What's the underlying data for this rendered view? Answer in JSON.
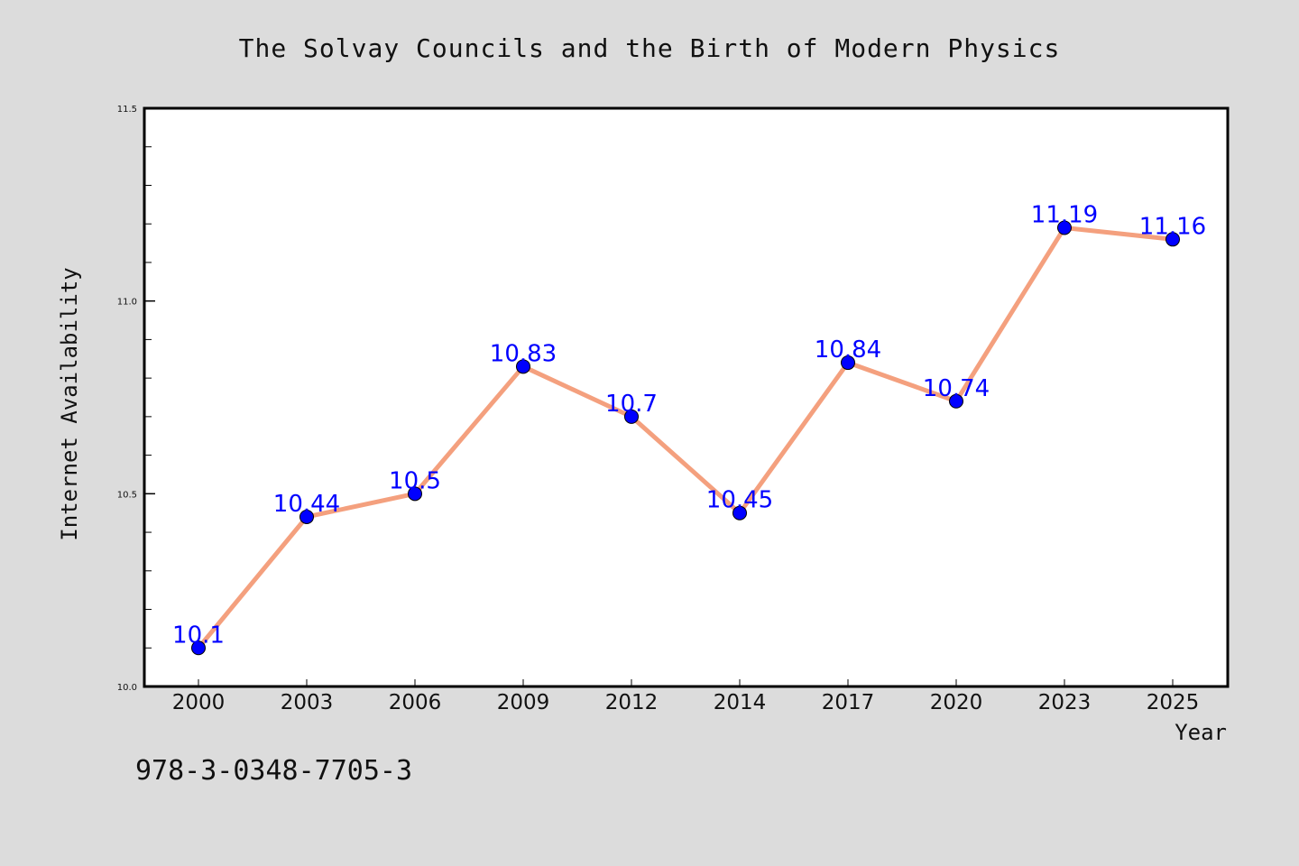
{
  "colors": {
    "background": "#dcdcdc",
    "plot_background": "#ffffff",
    "line": "#f4a07e",
    "marker": "#0000ff",
    "data_label": "#0000ff",
    "text": "#111111"
  },
  "footer": {
    "isbn": "978-3-0348-7705-3"
  },
  "chart_data": {
    "type": "line",
    "title": "The Solvay Councils and the Birth of Modern Physics",
    "xlabel": "Year",
    "ylabel": "Internet Availability",
    "categories": [
      "2000",
      "2003",
      "2006",
      "2009",
      "2012",
      "2014",
      "2017",
      "2020",
      "2023",
      "2025"
    ],
    "series": [
      {
        "values": [
          10.1,
          10.44,
          10.5,
          10.83,
          10.7,
          10.45,
          10.84,
          10.74,
          11.19,
          11.16
        ],
        "labels": [
          "10.1",
          "10.44",
          "10.5",
          "10.83",
          "10.7",
          "10.45",
          "10.84",
          "10.74",
          "11.19",
          "11.16"
        ]
      }
    ],
    "ylim": [
      10.0,
      11.5
    ],
    "yticks": [
      10.0,
      10.5,
      11.0,
      11.5
    ],
    "ytick_labels": [
      "10.0",
      "10.5",
      "11.0",
      "11.5"
    ],
    "yminor_step": 0.1,
    "grid": false,
    "legend": "none"
  }
}
